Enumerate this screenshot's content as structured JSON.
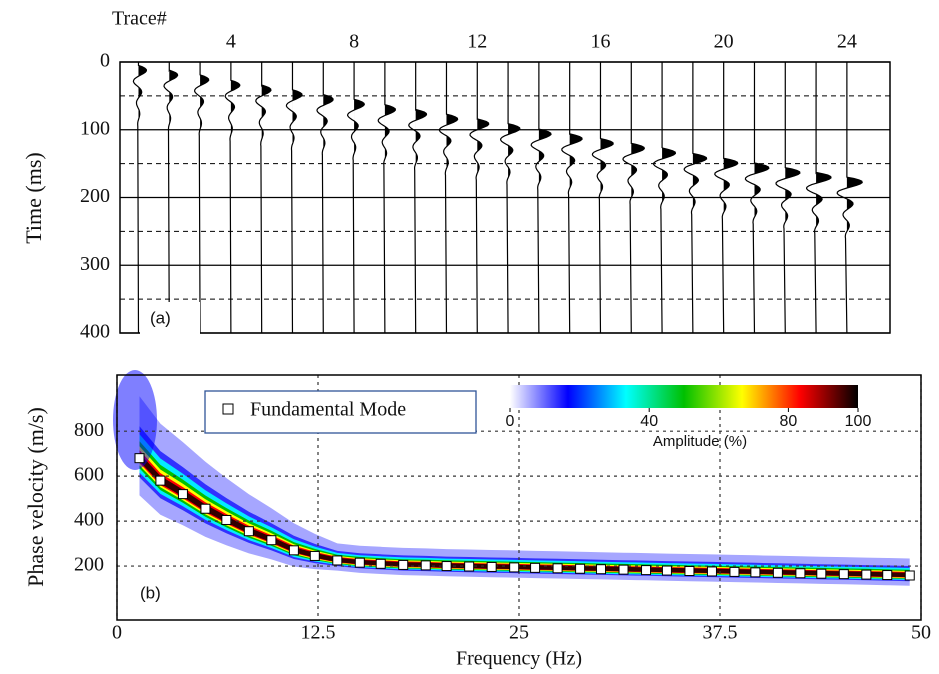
{
  "chart_data": [
    {
      "type": "wiggle",
      "xlabel": "Trace#",
      "ylabel": "Time (ms)",
      "annotation": "(a)",
      "x": [
        1,
        2,
        3,
        4,
        5,
        6,
        7,
        8,
        9,
        10,
        11,
        12,
        13,
        14,
        15,
        16,
        17,
        18,
        19,
        20,
        21,
        22,
        23,
        24
      ],
      "values": [
        5,
        12,
        19,
        27,
        34,
        41,
        48,
        55,
        63,
        70,
        77,
        84,
        91,
        99,
        106,
        113,
        120,
        127,
        135,
        142,
        149,
        156,
        163,
        170
      ],
      "color": "#000000",
      "xlim": [
        0.4,
        25.4
      ],
      "xticks": [
        4,
        8,
        12,
        16,
        20,
        24
      ],
      "ylim": [
        0,
        400
      ],
      "yticks": [
        0,
        100,
        200,
        300,
        400
      ],
      "y_inverted": true,
      "grid": true
    },
    {
      "type": "scatter",
      "xlabel": "Frequency (Hz)",
      "ylabel": "Phase velocity (m/s)",
      "annotation": "(b)",
      "x": [
        1.4,
        2.7,
        4.1,
        5.5,
        6.8,
        8.2,
        9.6,
        11,
        12.3,
        13.7,
        15.1,
        16.4,
        17.8,
        19.2,
        20.5,
        21.9,
        23.3,
        24.7,
        26,
        27.4,
        28.8,
        30.1,
        31.5,
        32.9,
        34.2,
        35.6,
        37,
        38.4,
        39.7,
        41.1,
        42.5,
        43.8,
        45.2,
        46.6,
        47.9,
        49.3
      ],
      "series": [
        {
          "name": "Fundamental Mode",
          "color": "#ffffff",
          "values": [
            680,
            580,
            520,
            455,
            405,
            355,
            315,
            270,
            245,
            225,
            215,
            210,
            205,
            203,
            200,
            198,
            196,
            194,
            192,
            190,
            188,
            186,
            184,
            182,
            180,
            178,
            176,
            174,
            172,
            170,
            168,
            166,
            164,
            162,
            160,
            158
          ]
        }
      ],
      "xlim": [
        0,
        50
      ],
      "xticks": [
        0,
        12.5,
        25,
        37.5,
        50
      ],
      "ylim": [
        -40,
        1050
      ],
      "yticks": [
        200,
        400,
        600,
        800
      ],
      "grid": true,
      "legend": "top-left",
      "colorbar": {
        "label": "Amplitude (%)",
        "lim": [
          0,
          100
        ],
        "ticks": [
          0,
          40,
          80,
          100
        ],
        "colors": [
          "#ffffff",
          "#0000ff",
          "#00ffff",
          "#00c000",
          "#ffff00",
          "#ff0000",
          "#000000"
        ]
      }
    }
  ]
}
